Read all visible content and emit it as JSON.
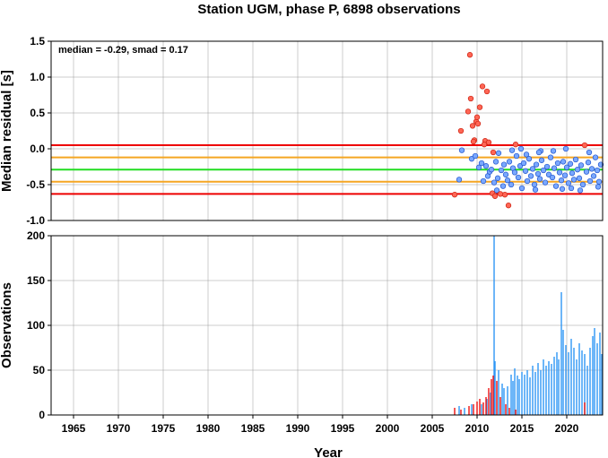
{
  "title": "Station UGM, phase P, 6898 observations",
  "chart_data": [
    {
      "type": "scatter",
      "ylabel": "Median residual [s]",
      "xlim": [
        1962.5,
        2024
      ],
      "ylim": [
        -1.0,
        1.5
      ],
      "yticks": [
        "1.5",
        "1.0",
        "0.5",
        "0.0",
        "-0.5",
        "-1.0"
      ],
      "grid": true,
      "annotation": "median = -0.29, smad = 0.17",
      "reference_lines": [
        {
          "y": 0.05,
          "color": "#ee0000"
        },
        {
          "y": -0.12,
          "color": "#f5a623"
        },
        {
          "y": -0.29,
          "color": "#22dd22"
        },
        {
          "y": -0.46,
          "color": "#f5a623"
        },
        {
          "y": -0.63,
          "color": "#ee0000"
        }
      ],
      "colors": {
        "inlier_fill": "#7aa8ff",
        "inlier_stroke": "#2255cc",
        "outlier_fill": "#ff6655",
        "outlier_stroke": "#cc2211"
      },
      "outliers": [
        [
          2007.5,
          -0.64
        ],
        [
          2008.2,
          0.25
        ],
        [
          2009.0,
          0.52
        ],
        [
          2009.2,
          1.31
        ],
        [
          2009.3,
          0.7
        ],
        [
          2009.5,
          0.32
        ],
        [
          2009.7,
          0.12
        ],
        [
          2009.9,
          0.38
        ],
        [
          2010.0,
          0.44
        ],
        [
          2010.1,
          0.35
        ],
        [
          2010.3,
          0.58
        ],
        [
          2010.6,
          0.87
        ],
        [
          2010.9,
          0.11
        ],
        [
          2011.1,
          0.8
        ],
        [
          2011.3,
          0.09
        ],
        [
          2009.6,
          0.1
        ],
        [
          2010.8,
          0.06
        ],
        [
          2011.7,
          -0.62
        ],
        [
          2012.0,
          -0.66
        ],
        [
          2013.1,
          -0.64
        ],
        [
          2013.5,
          -0.79
        ],
        [
          2014.3,
          0.06
        ],
        [
          2022.0,
          0.05
        ],
        [
          2011.8,
          -0.05
        ],
        [
          2012.6,
          -0.63
        ]
      ],
      "inliers": [
        [
          2008.0,
          -0.43
        ],
        [
          2008.3,
          -0.02
        ],
        [
          2009.4,
          -0.14
        ],
        [
          2009.8,
          -0.1
        ],
        [
          2010.2,
          -0.26
        ],
        [
          2010.5,
          -0.2
        ],
        [
          2010.7,
          -0.45
        ],
        [
          2011.0,
          -0.24
        ],
        [
          2011.2,
          -0.38
        ],
        [
          2011.4,
          -0.32
        ],
        [
          2011.6,
          -0.29
        ],
        [
          2011.9,
          -0.47
        ],
        [
          2012.1,
          -0.18
        ],
        [
          2012.3,
          -0.41
        ],
        [
          2012.4,
          -0.06
        ],
        [
          2012.7,
          -0.3
        ],
        [
          2012.9,
          -0.52
        ],
        [
          2013.0,
          -0.22
        ],
        [
          2013.2,
          -0.36
        ],
        [
          2013.4,
          -0.44
        ],
        [
          2013.6,
          -0.18
        ],
        [
          2013.8,
          -0.5
        ],
        [
          2014.0,
          -0.27
        ],
        [
          2014.2,
          -0.33
        ],
        [
          2014.4,
          -0.1
        ],
        [
          2014.6,
          -0.4
        ],
        [
          2014.8,
          -0.24
        ],
        [
          2015.0,
          -0.55
        ],
        [
          2015.2,
          -0.2
        ],
        [
          2015.4,
          -0.31
        ],
        [
          2015.6,
          -0.45
        ],
        [
          2015.8,
          -0.14
        ],
        [
          2016.0,
          -0.38
        ],
        [
          2016.2,
          -0.28
        ],
        [
          2016.4,
          -0.5
        ],
        [
          2016.6,
          -0.22
        ],
        [
          2016.8,
          -0.35
        ],
        [
          2017.0,
          -0.42
        ],
        [
          2017.2,
          -0.16
        ],
        [
          2017.4,
          -0.3
        ],
        [
          2017.6,
          -0.47
        ],
        [
          2017.8,
          -0.25
        ],
        [
          2018.0,
          -0.36
        ],
        [
          2018.2,
          -0.12
        ],
        [
          2018.4,
          -0.4
        ],
        [
          2018.6,
          -0.27
        ],
        [
          2018.8,
          -0.52
        ],
        [
          2019.0,
          -0.2
        ],
        [
          2019.2,
          -0.33
        ],
        [
          2019.4,
          -0.44
        ],
        [
          2019.6,
          -0.18
        ],
        [
          2019.8,
          -0.37
        ],
        [
          2020.0,
          -0.26
        ],
        [
          2020.2,
          -0.48
        ],
        [
          2020.4,
          -0.21
        ],
        [
          2020.6,
          -0.34
        ],
        [
          2020.8,
          -0.43
        ],
        [
          2021.0,
          -0.15
        ],
        [
          2021.2,
          -0.29
        ],
        [
          2021.4,
          -0.41
        ],
        [
          2021.6,
          -0.23
        ],
        [
          2021.8,
          -0.5
        ],
        [
          2022.2,
          -0.32
        ],
        [
          2022.4,
          -0.19
        ],
        [
          2022.6,
          -0.45
        ],
        [
          2022.8,
          -0.28
        ],
        [
          2023.0,
          -0.38
        ],
        [
          2023.2,
          -0.12
        ],
        [
          2023.4,
          -0.3
        ],
        [
          2023.6,
          -0.46
        ],
        [
          2023.8,
          -0.22
        ],
        [
          2012.2,
          -0.58
        ],
        [
          2014.9,
          0.0
        ],
        [
          2016.5,
          -0.57
        ],
        [
          2018.5,
          -0.03
        ],
        [
          2020.5,
          -0.55
        ],
        [
          2022.5,
          -0.05
        ],
        [
          2013.9,
          -0.02
        ],
        [
          2017.1,
          -0.03
        ],
        [
          2019.5,
          -0.56
        ],
        [
          2021.5,
          -0.58
        ],
        [
          2015.5,
          -0.08
        ],
        [
          2023.5,
          -0.53
        ],
        [
          2019.9,
          0.0
        ],
        [
          2016.9,
          -0.05
        ]
      ]
    },
    {
      "type": "bar",
      "xlabel": "Year",
      "ylabel": "Observations",
      "xlim": [
        1962.5,
        2024
      ],
      "ylim": [
        0,
        200
      ],
      "yticks": [
        "200",
        "150",
        "100",
        "50",
        "0"
      ],
      "xticks": [
        "1965",
        "1970",
        "1975",
        "1980",
        "1985",
        "1990",
        "1995",
        "2000",
        "2005",
        "2010",
        "2015",
        "2020"
      ],
      "grid": true,
      "colors": {
        "blue": "#2f96f5",
        "red": "#ee1111"
      },
      "red_bars": [
        [
          2007.5,
          8
        ],
        [
          2008.2,
          6
        ],
        [
          2009.1,
          10
        ],
        [
          2009.6,
          12
        ],
        [
          2010.0,
          15
        ],
        [
          2010.3,
          18
        ],
        [
          2010.7,
          14
        ],
        [
          2011.0,
          20
        ],
        [
          2011.3,
          30
        ],
        [
          2011.6,
          40
        ],
        [
          2011.8,
          44
        ],
        [
          2012.2,
          38
        ],
        [
          2012.6,
          20
        ],
        [
          2013.2,
          12
        ],
        [
          2013.6,
          8
        ],
        [
          2014.3,
          6
        ],
        [
          2022.0,
          14
        ]
      ],
      "blue_bars": [
        [
          2008.0,
          10
        ],
        [
          2008.6,
          8
        ],
        [
          2009.4,
          12
        ],
        [
          2010.5,
          12
        ],
        [
          2011.1,
          18
        ],
        [
          2011.5,
          25
        ],
        [
          2011.9,
          200
        ],
        [
          2012.0,
          60
        ],
        [
          2012.4,
          50
        ],
        [
          2012.8,
          35
        ],
        [
          2013.0,
          30
        ],
        [
          2013.4,
          32
        ],
        [
          2013.8,
          45
        ],
        [
          2014.0,
          38
        ],
        [
          2014.2,
          52
        ],
        [
          2014.5,
          44
        ],
        [
          2014.7,
          40
        ],
        [
          2015.0,
          48
        ],
        [
          2015.3,
          45
        ],
        [
          2015.6,
          50
        ],
        [
          2015.9,
          42
        ],
        [
          2016.2,
          55
        ],
        [
          2016.5,
          48
        ],
        [
          2016.8,
          58
        ],
        [
          2017.1,
          50
        ],
        [
          2017.4,
          62
        ],
        [
          2017.7,
          55
        ],
        [
          2018.0,
          60
        ],
        [
          2018.3,
          57
        ],
        [
          2018.6,
          65
        ],
        [
          2018.9,
          70
        ],
        [
          2019.1,
          62
        ],
        [
          2019.4,
          137
        ],
        [
          2019.6,
          95
        ],
        [
          2019.9,
          78
        ],
        [
          2020.2,
          70
        ],
        [
          2020.5,
          85
        ],
        [
          2020.8,
          75
        ],
        [
          2021.1,
          62
        ],
        [
          2021.4,
          80
        ],
        [
          2021.7,
          72
        ],
        [
          2022.0,
          68
        ],
        [
          2022.3,
          55
        ],
        [
          2022.6,
          75
        ],
        [
          2022.9,
          88
        ],
        [
          2023.1,
          97
        ],
        [
          2023.4,
          80
        ],
        [
          2023.7,
          92
        ],
        [
          2023.9,
          68
        ]
      ]
    }
  ]
}
